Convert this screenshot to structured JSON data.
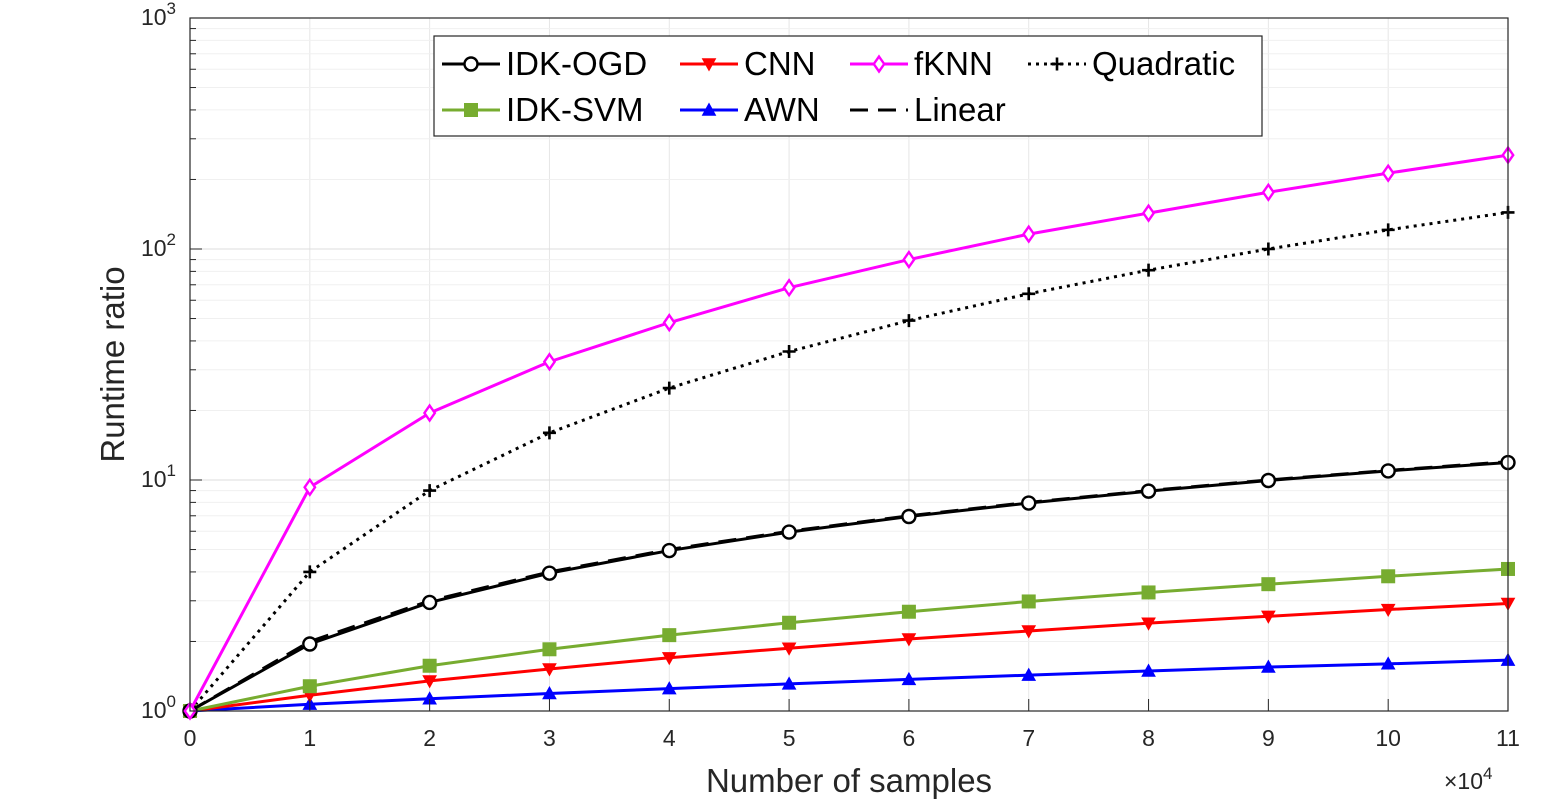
{
  "chart_data": {
    "type": "line",
    "title": "",
    "xlabel": "Number of samples",
    "ylabel": "Runtime ratio",
    "x_exponent_label": "×10",
    "x_exponent_power": "4",
    "xlim": [
      0,
      11
    ],
    "ylim": [
      1,
      1000
    ],
    "yscale": "log",
    "grid": true,
    "legend_position": "top-center",
    "x_ticks": [
      "0",
      "1",
      "2",
      "3",
      "4",
      "5",
      "6",
      "7",
      "8",
      "9",
      "10",
      "11"
    ],
    "y_ticks": [
      {
        "base": "10",
        "exp": "0",
        "value": 1
      },
      {
        "base": "10",
        "exp": "1",
        "value": 10
      },
      {
        "base": "10",
        "exp": "2",
        "value": 100
      },
      {
        "base": "10",
        "exp": "3",
        "value": 1000
      }
    ],
    "x": [
      0,
      1,
      2,
      3,
      4,
      5,
      6,
      7,
      8,
      9,
      10,
      11
    ],
    "series": [
      {
        "name": "Linear",
        "color": "#000000",
        "dash": "dashed",
        "marker": "none",
        "values": [
          1,
          2,
          3,
          4,
          5,
          6,
          7,
          8,
          9,
          10,
          11,
          12
        ]
      },
      {
        "name": "IDK-OGD",
        "color": "#000000",
        "dash": "solid",
        "marker": "circle",
        "values": [
          1,
          1.95,
          2.95,
          3.95,
          4.95,
          5.95,
          6.95,
          7.95,
          8.95,
          9.95,
          10.95,
          11.9
        ]
      },
      {
        "name": "IDK-SVM",
        "color": "#77AC30",
        "dash": "solid",
        "marker": "square",
        "values": [
          1,
          1.28,
          1.57,
          1.85,
          2.13,
          2.41,
          2.69,
          2.98,
          3.26,
          3.54,
          3.83,
          4.12
        ]
      },
      {
        "name": "CNN",
        "color": "#FF0000",
        "dash": "solid",
        "marker": "triangle-down",
        "values": [
          1,
          1.17,
          1.35,
          1.52,
          1.7,
          1.87,
          2.05,
          2.22,
          2.4,
          2.57,
          2.75,
          2.92
        ]
      },
      {
        "name": "AWN",
        "color": "#0000FF",
        "dash": "solid",
        "marker": "triangle-up",
        "values": [
          1,
          1.07,
          1.13,
          1.19,
          1.25,
          1.31,
          1.37,
          1.43,
          1.49,
          1.55,
          1.6,
          1.66
        ]
      },
      {
        "name": "fKNN",
        "color": "#FF00FF",
        "dash": "solid",
        "marker": "diamond",
        "values": [
          1,
          9.3,
          19.5,
          32.5,
          48,
          68,
          90,
          116,
          143,
          176,
          213,
          255
        ]
      },
      {
        "name": "Quadratic",
        "color": "#000000",
        "dash": "dotted",
        "marker": "plus",
        "values": [
          1,
          4,
          9,
          16,
          25,
          36,
          49,
          64,
          81,
          100,
          121,
          144
        ]
      }
    ],
    "legend_rows": [
      [
        "IDK-OGD",
        "CNN",
        "fKNN",
        "Quadratic"
      ],
      [
        "IDK-SVM",
        "AWN",
        "Linear"
      ]
    ]
  }
}
